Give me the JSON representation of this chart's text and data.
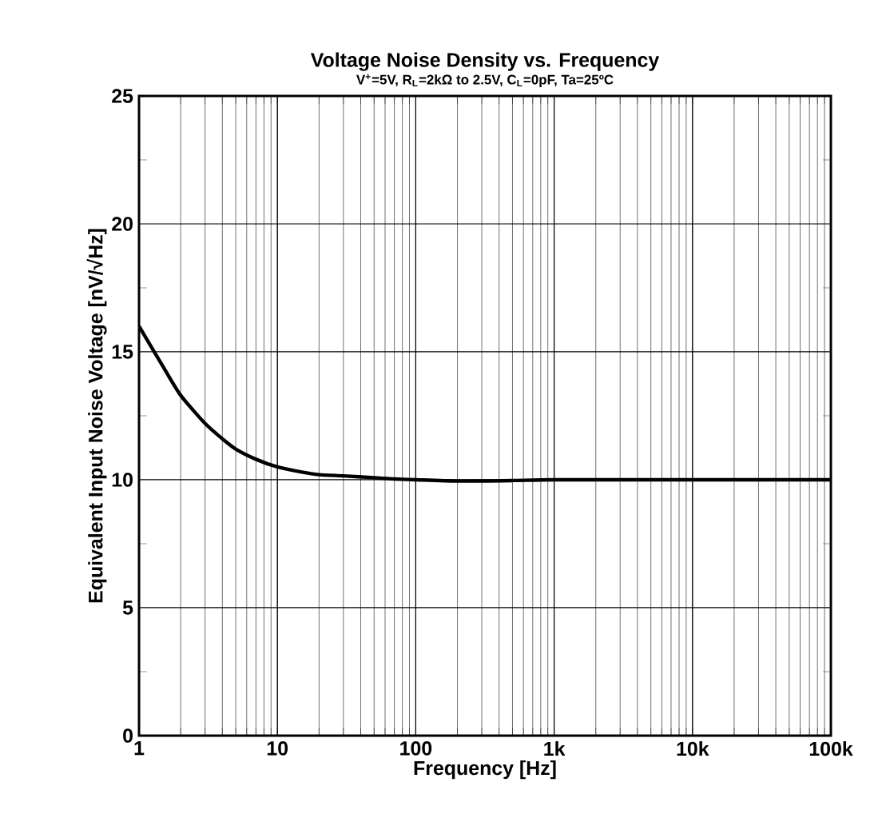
{
  "chart_data": {
    "type": "line",
    "title": "Voltage Noise Density vs. Frequency",
    "subtitle": "V$^{+}$=5V, R$_{L}$=2kΩ to 2.5V, C$_{L}$=0pF, Ta=25ºC",
    "xlabel": "Frequency [Hz]",
    "ylabel": "Equivalent Input Noise Voltage [nV/√Hz]",
    "x": [
      1,
      1.5,
      2,
      3,
      4,
      5,
      7,
      10,
      15,
      20,
      30,
      50,
      70,
      100,
      200,
      500,
      1000,
      10000,
      100000
    ],
    "series": [
      {
        "color": "#000000",
        "values": [
          16,
          14.4,
          13.3,
          12.2,
          11.6,
          11.2,
          10.8,
          10.5,
          10.3,
          10.2,
          10.15,
          10.08,
          10.03,
          10,
          9.95,
          9.97,
          10,
          10,
          10
        ]
      }
    ],
    "xlim": [
      1,
      100000
    ],
    "ylim": [
      0,
      25
    ],
    "xticks": [
      1,
      10,
      100,
      {
        "value": 1000,
        "label": "1k"
      },
      {
        "value": 10000,
        "label": "10k"
      },
      {
        "value": 100000,
        "label": "100k"
      }
    ],
    "yticks": [
      0,
      5,
      10,
      15,
      20,
      25
    ],
    "log": "x",
    "grid": true,
    "marker": "none",
    "line_style": "solid"
  }
}
